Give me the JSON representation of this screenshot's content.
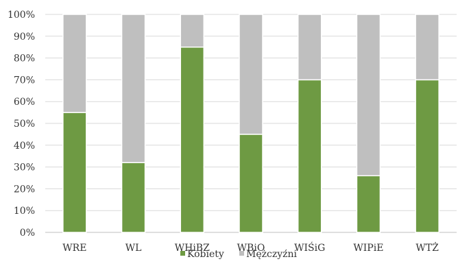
{
  "chart_data": {
    "type": "bar",
    "stacked": true,
    "stacked_to": "100%",
    "categories": [
      "WRE",
      "WL",
      "WHiBZ",
      "WBiO",
      "WIŚiG",
      "WIPiE",
      "WTŻ"
    ],
    "series": [
      {
        "name": "Kobiety",
        "color": "#6e9a43",
        "values": [
          55,
          32,
          85,
          45,
          70,
          26,
          70
        ]
      },
      {
        "name": "Mężczyźni",
        "color": "#bfbfbf",
        "values": [
          45,
          68,
          15,
          55,
          30,
          74,
          30
        ]
      }
    ],
    "ylim": [
      0,
      100
    ],
    "y_ticks": [
      "0%",
      "10%",
      "20%",
      "30%",
      "40%",
      "50%",
      "60%",
      "70%",
      "80%",
      "90%",
      "100%"
    ],
    "grid": true,
    "legend_position": "bottom",
    "gridline_color": "#d9d9d9",
    "axis_color": "#bfbfbf"
  }
}
